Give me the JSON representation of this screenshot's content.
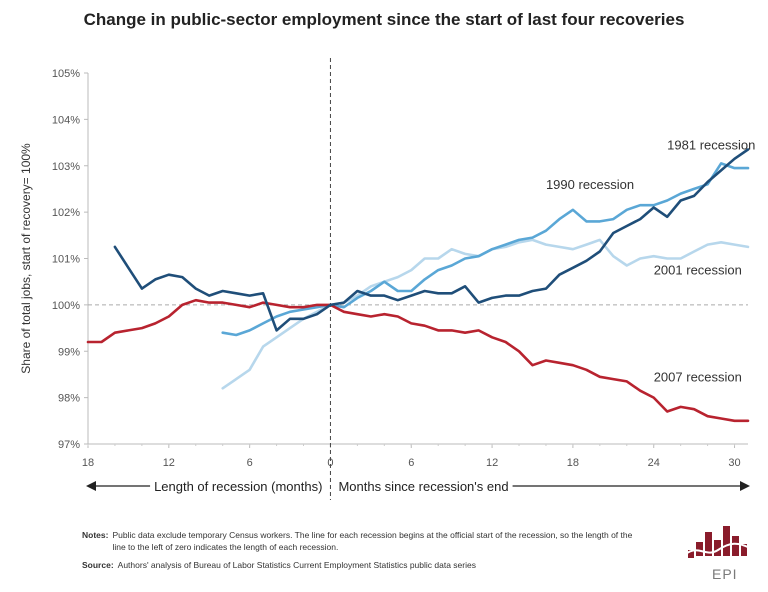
{
  "chart_data": {
    "type": "line",
    "title": "Change in public-sector employment since the start of last four recoveries",
    "ylabel": "Share of total jobs, start of recovery= 100%",
    "xlim": [
      -18,
      31
    ],
    "ylim": [
      97,
      105
    ],
    "y_ticks": [
      97,
      98,
      99,
      100,
      101,
      102,
      103,
      104,
      105
    ],
    "y_tick_labels": [
      "97%",
      "98%",
      "99%",
      "100%",
      "101%",
      "102%",
      "103%",
      "104%",
      "105%"
    ],
    "x_ticks": [
      -18,
      -12,
      -6,
      0,
      6,
      12,
      18,
      24,
      30
    ],
    "x_tick_labels": [
      "18",
      "12",
      "6",
      "0",
      "6",
      "12",
      "18",
      "24",
      "30"
    ],
    "reference_line": 100,
    "left_arrow_label": "Length of recession (months)",
    "right_arrow_label": "Months since recession's end",
    "series": [
      {
        "name": "1981 recession",
        "color": "#1f4e79",
        "x": [
          -16,
          -15,
          -14,
          -13,
          -12,
          -11,
          -10,
          -9,
          -8,
          -7,
          -6,
          -5,
          -4,
          -3,
          -2,
          -1,
          0,
          1,
          2,
          3,
          4,
          5,
          6,
          7,
          8,
          9,
          10,
          11,
          12,
          13,
          14,
          15,
          16,
          17,
          18,
          19,
          20,
          21,
          22,
          23,
          24,
          25,
          26,
          27,
          28,
          29,
          30,
          31
        ],
        "values": [
          101.25,
          100.8,
          100.35,
          100.55,
          100.65,
          100.6,
          100.35,
          100.2,
          100.3,
          100.25,
          100.2,
          100.25,
          99.45,
          99.7,
          99.7,
          99.8,
          100.0,
          100.05,
          100.3,
          100.2,
          100.2,
          100.1,
          100.2,
          100.3,
          100.25,
          100.25,
          100.4,
          100.05,
          100.15,
          100.2,
          100.2,
          100.3,
          100.35,
          100.65,
          100.8,
          100.95,
          101.15,
          101.55,
          101.7,
          101.85,
          102.1,
          101.9,
          102.25,
          102.35,
          102.65,
          102.9,
          103.15,
          103.35
        ]
      },
      {
        "name": "1990 recession",
        "color": "#5aa7d6",
        "x": [
          -8,
          -7,
          -6,
          -5,
          -4,
          -3,
          -2,
          -1,
          0,
          1,
          2,
          3,
          4,
          5,
          6,
          7,
          8,
          9,
          10,
          11,
          12,
          13,
          14,
          15,
          16,
          17,
          18,
          19,
          20,
          21,
          22,
          23,
          24,
          25,
          26,
          27,
          28,
          29,
          30,
          31
        ],
        "values": [
          99.4,
          99.35,
          99.45,
          99.6,
          99.75,
          99.85,
          99.9,
          99.95,
          100.0,
          99.95,
          100.15,
          100.3,
          100.5,
          100.3,
          100.3,
          100.55,
          100.75,
          100.85,
          101.0,
          101.05,
          101.2,
          101.3,
          101.4,
          101.45,
          101.6,
          101.85,
          102.05,
          101.8,
          101.8,
          101.85,
          102.05,
          102.15,
          102.15,
          102.25,
          102.4,
          102.5,
          102.6,
          103.05,
          102.95,
          102.95
        ]
      },
      {
        "name": "2001 recession",
        "color": "#b7d7ec",
        "x": [
          -8,
          -7,
          -6,
          -5,
          -4,
          -3,
          -2,
          -1,
          0,
          1,
          2,
          3,
          4,
          5,
          6,
          7,
          8,
          9,
          10,
          11,
          12,
          13,
          14,
          15,
          16,
          17,
          18,
          19,
          20,
          21,
          22,
          23,
          24,
          25,
          26,
          27,
          28,
          29,
          30,
          31
        ],
        "values": [
          98.2,
          98.4,
          98.6,
          99.1,
          99.3,
          99.5,
          99.7,
          99.85,
          100.0,
          100.05,
          100.2,
          100.4,
          100.5,
          100.6,
          100.75,
          101.0,
          101.0,
          101.2,
          101.1,
          101.05,
          101.2,
          101.25,
          101.35,
          101.4,
          101.3,
          101.25,
          101.2,
          101.3,
          101.4,
          101.05,
          100.85,
          101.0,
          101.05,
          101.0,
          101.0,
          101.15,
          101.3,
          101.35,
          101.3,
          101.25
        ]
      },
      {
        "name": "2007 recession",
        "color": "#b8232f",
        "x": [
          -18,
          -17,
          -16,
          -15,
          -14,
          -13,
          -12,
          -11,
          -10,
          -9,
          -8,
          -7,
          -6,
          -5,
          -4,
          -3,
          -2,
          -1,
          0,
          1,
          2,
          3,
          4,
          5,
          6,
          7,
          8,
          9,
          10,
          11,
          12,
          13,
          14,
          15,
          16,
          17,
          18,
          19,
          20,
          21,
          22,
          23,
          24,
          25,
          26,
          27,
          28,
          29,
          30,
          31
        ],
        "values": [
          99.2,
          99.2,
          99.4,
          99.45,
          99.5,
          99.6,
          99.75,
          100.0,
          100.1,
          100.05,
          100.05,
          100.0,
          99.95,
          100.05,
          100.0,
          99.95,
          99.95,
          100.0,
          100.0,
          99.85,
          99.8,
          99.75,
          99.8,
          99.75,
          99.6,
          99.55,
          99.45,
          99.45,
          99.4,
          99.45,
          99.3,
          99.2,
          99.0,
          98.7,
          98.8,
          98.75,
          98.7,
          98.6,
          98.45,
          98.4,
          98.35,
          98.15,
          98.0,
          97.7,
          97.8,
          97.75,
          97.6,
          97.55,
          97.5,
          97.5
        ]
      }
    ]
  },
  "series_labels": [
    {
      "text": "1981 recession",
      "x": 25,
      "y": 103.35,
      "anchor": "start"
    },
    {
      "text": "1990 recession",
      "x": 16,
      "y": 102.5,
      "anchor": "start"
    },
    {
      "text": "2001 recession",
      "x": 24,
      "y": 100.65,
      "anchor": "start"
    },
    {
      "text": "2007 recession",
      "x": 24,
      "y": 98.35,
      "anchor": "start"
    }
  ],
  "notes": {
    "notes_label": "Notes:",
    "notes_text": "Public data exclude temporary Census workers. The line for each recession begins at the official start of the recession, so the length of the line to the left of zero indicates the length of each recession.",
    "source_label": "Source:",
    "source_text": "Authors' analysis of Bureau of Labor Statistics Current Employment Statistics public data series"
  },
  "logo": {
    "text": "EPI",
    "color": "#8a1c2b"
  }
}
